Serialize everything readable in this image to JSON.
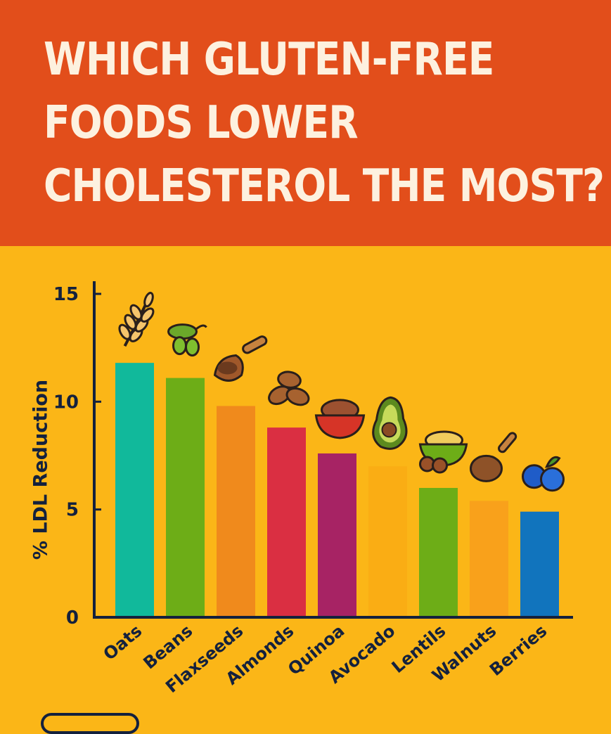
{
  "title_lines": [
    "WHICH GLUTEN-FREE",
    "FOODS LOWER",
    "CHOLESTEROL THE MOST?"
  ],
  "colors": {
    "banner": "#E24E1B",
    "background": "#FBB617",
    "title_text": "#FDF1DF",
    "axis": "#14213D"
  },
  "chart_data": {
    "type": "bar",
    "title": "WHICH GLUTEN-FREE FOODS LOWER CHOLESTEROL THE MOST?",
    "xlabel": "",
    "ylabel": "% LDL Reduction",
    "ylim": [
      0,
      15
    ],
    "yticks": [
      0,
      5,
      10,
      15
    ],
    "grid": false,
    "categories": [
      "Oats",
      "Beans",
      "Flaxseeds",
      "Almonds",
      "Quinoa",
      "Avocado",
      "Lentils",
      "Walnuts",
      "Berries"
    ],
    "values": [
      11.8,
      11.1,
      9.8,
      8.8,
      7.6,
      7.0,
      6.0,
      5.4,
      4.9
    ],
    "bar_colors": [
      "#11B99B",
      "#6DAD17",
      "#F08A1C",
      "#DA2F42",
      "#A72364",
      "#FAAD14",
      "#6DAD17",
      "#F9A11B",
      "#1174BD"
    ],
    "icons": [
      "wheat-icon",
      "bean-pod-icon",
      "flaxseed-scoop-icon",
      "almonds-icon",
      "quinoa-bowl-icon",
      "avocado-icon",
      "lentil-bowl-icon",
      "walnut-spoon-icon",
      "blueberries-icon"
    ]
  }
}
